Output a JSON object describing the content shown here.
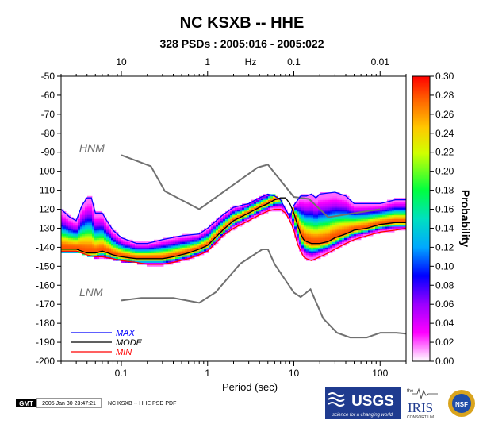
{
  "chart_data": {
    "type": "heatmap",
    "title": "NC KSXB -- HHE",
    "subtitle": "328 PSDs : 2005:016 - 2005:022",
    "xlabel": "Period (sec)",
    "x2label": "Hz",
    "ylabel": "",
    "colorbar_label": "Probability",
    "x_scale": "log",
    "xlim": [
      0.02,
      200
    ],
    "ylim": [
      -200,
      -50
    ],
    "x_ticks": [
      {
        "value": 0.1,
        "label": "0.1"
      },
      {
        "value": 1,
        "label": "1"
      },
      {
        "value": 10,
        "label": "10"
      },
      {
        "value": 100,
        "label": "100"
      }
    ],
    "x2_ticks": [
      {
        "value": 0.1,
        "label": "10"
      },
      {
        "value": 1,
        "label": "1"
      },
      {
        "value": 10,
        "label": "0.1"
      },
      {
        "value": 100,
        "label": "0.01"
      }
    ],
    "y_ticks": [
      -50,
      -60,
      -70,
      -80,
      -90,
      -100,
      -110,
      -120,
      -130,
      -140,
      -150,
      -160,
      -170,
      -180,
      -190,
      -200
    ],
    "colorbar_ticks": [
      "0.00",
      "0.02",
      "0.04",
      "0.06",
      "0.08",
      "0.10",
      "0.12",
      "0.14",
      "0.16",
      "0.18",
      "0.20",
      "0.22",
      "0.24",
      "0.26",
      "0.28",
      "0.30"
    ],
    "colorbar_range": [
      0.0,
      0.3
    ],
    "colorbar_colors": [
      "#ffffff",
      "#ff00ff",
      "#7f00ff",
      "#0000ff",
      "#00c8ff",
      "#00ff80",
      "#ffff00",
      "#ff8000",
      "#ff0000"
    ],
    "model_labels": {
      "hnm": "HNM",
      "lnm": "LNM"
    },
    "hnm": {
      "x": [
        0.1,
        0.22,
        0.32,
        0.8,
        3.8,
        5,
        6,
        10,
        15,
        25,
        100
      ],
      "y": [
        -91.5,
        -97.4,
        -110.5,
        -120,
        -98,
        -96.5,
        -101,
        -113.5,
        -114.6,
        -124.2,
        -120
      ]
    },
    "lnm": {
      "x": [
        0.1,
        0.17,
        0.4,
        0.8,
        1.24,
        2.4,
        4.3,
        5,
        6,
        10,
        12,
        15.6,
        21.9,
        31.6,
        45,
        70,
        101,
        154,
        200
      ],
      "y": [
        -168,
        -166.7,
        -166.7,
        -169.2,
        -163.7,
        -148.6,
        -141.1,
        -141.1,
        -149,
        -163.8,
        -166.2,
        -162.1,
        -177.5,
        -185,
        -187.5,
        -187.5,
        -185,
        -185,
        -185.5
      ]
    },
    "series": [
      {
        "name": "MAX",
        "color": "#0000ff",
        "x": [
          0.02,
          0.025,
          0.03,
          0.035,
          0.04,
          0.045,
          0.05,
          0.055,
          0.06,
          0.07,
          0.08,
          0.1,
          0.15,
          0.2,
          0.3,
          0.5,
          0.8,
          1,
          1.5,
          2,
          3,
          4,
          5,
          6,
          7,
          8,
          9,
          10,
          12,
          14,
          16,
          18,
          20,
          30,
          40,
          50,
          70,
          100,
          150,
          200
        ],
        "y": [
          -120,
          -124,
          -126,
          -118,
          -114,
          -114,
          -122,
          -122,
          -122,
          -127,
          -131,
          -135,
          -138,
          -138,
          -136,
          -134,
          -133,
          -130,
          -123,
          -119,
          -117,
          -114,
          -112,
          -113,
          -115,
          -120,
          -124,
          -118,
          -113,
          -113,
          -112,
          -114,
          -112,
          -111,
          -113,
          -117,
          -117,
          -117,
          -115,
          -115
        ]
      },
      {
        "name": "MODE",
        "color": "#000000",
        "x": [
          0.02,
          0.03,
          0.04,
          0.05,
          0.06,
          0.07,
          0.08,
          0.1,
          0.15,
          0.2,
          0.3,
          0.4,
          0.6,
          0.8,
          1,
          1.5,
          2,
          3,
          4,
          5,
          6,
          7,
          8,
          9,
          10,
          11,
          12,
          13,
          14,
          16,
          18,
          20,
          25,
          30,
          40,
          50,
          70,
          100,
          150,
          200
        ],
        "y": [
          -141,
          -141,
          -143,
          -143,
          -142,
          -143,
          -144,
          -145,
          -146,
          -146,
          -146,
          -145,
          -143,
          -141,
          -139,
          -131,
          -126,
          -122,
          -119,
          -117,
          -115,
          -114,
          -114,
          -117,
          -122,
          -128,
          -133,
          -136,
          -137,
          -138,
          -138,
          -138,
          -137,
          -135,
          -133,
          -131,
          -130,
          -128,
          -127,
          -127
        ]
      },
      {
        "name": "MIN",
        "color": "#ff0000",
        "x": [
          0.02,
          0.03,
          0.04,
          0.05,
          0.06,
          0.08,
          0.1,
          0.15,
          0.2,
          0.3,
          0.4,
          0.6,
          0.8,
          1,
          1.5,
          2,
          3,
          4,
          5,
          6,
          7,
          8,
          9,
          10,
          11,
          12,
          13,
          14,
          16,
          18,
          20,
          25,
          30,
          40,
          50,
          70,
          100,
          150,
          200
        ],
        "y": [
          -142,
          -142,
          -144,
          -145,
          -145,
          -146,
          -147,
          -148,
          -149,
          -149,
          -148,
          -146,
          -144,
          -142,
          -134,
          -130,
          -126,
          -123,
          -121,
          -120,
          -120,
          -122,
          -126,
          -131,
          -138,
          -142,
          -145,
          -146,
          -147,
          -146,
          -145,
          -143,
          -141,
          -138,
          -136,
          -134,
          -132,
          -131,
          -130
        ]
      }
    ],
    "legend": {
      "position": "bottom-left",
      "entries": [
        {
          "name": "MAX",
          "color": "#0000ff"
        },
        {
          "name": "MODE",
          "color": "#000000"
        },
        {
          "name": "MIN",
          "color": "#ff0000"
        }
      ]
    }
  },
  "footer": {
    "gmt_badge": "GMT",
    "timestamp": "2005 Jan 30 23:47:21",
    "caption": "NC KSXB -- HHE PSD PDF"
  },
  "logos": {
    "usgs": "USGS",
    "usgs_tagline": "science for a changing world",
    "iris_the": "the",
    "iris": "IRIS",
    "iris_sub": "CONSORTIUM",
    "nsf": "NSF"
  }
}
